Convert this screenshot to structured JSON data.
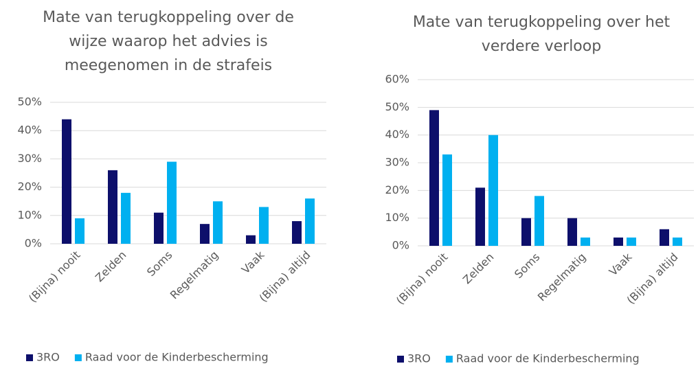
{
  "chart_data": [
    {
      "type": "bar",
      "title": "Mate van terugkoppeling over de wijze waarop het advies is meegenomen in de strafeis",
      "categories": [
        "(Bijna) nooit",
        "Zelden",
        "Soms",
        "Regelmatig",
        "Vaak",
        "(Bijna) altijd"
      ],
      "series": [
        {
          "name": "3RO",
          "color": "#0d0f6b",
          "values": [
            44,
            26,
            11,
            7,
            3,
            8
          ]
        },
        {
          "name": "Raad voor de Kinderbescherming",
          "color": "#00b0f0",
          "values": [
            9,
            18,
            29,
            15,
            13,
            16
          ]
        }
      ],
      "ylim": [
        0,
        50
      ],
      "yticks": [
        {
          "value": 0,
          "label": "0%"
        },
        {
          "value": 10,
          "label": "10%"
        },
        {
          "value": 20,
          "label": "20%"
        },
        {
          "value": 30,
          "label": "30%"
        },
        {
          "value": 40,
          "label": "40%"
        },
        {
          "value": 50,
          "label": "50%"
        }
      ],
      "grid": true,
      "legend": "bottom"
    },
    {
      "type": "bar",
      "title": "Mate van terugkoppeling over het verdere verloop",
      "categories": [
        "(Bijna) nooit",
        "Zelden",
        "Soms",
        "Regelmatig",
        "Vaak",
        "(Bijna) altijd"
      ],
      "series": [
        {
          "name": "3RO",
          "color": "#0d0f6b",
          "values": [
            49,
            21,
            10,
            10,
            3,
            6
          ]
        },
        {
          "name": "Raad voor de Kinderbescherming",
          "color": "#00b0f0",
          "values": [
            33,
            40,
            18,
            3,
            3,
            3
          ]
        }
      ],
      "ylim": [
        0,
        60
      ],
      "yticks": [
        {
          "value": 0,
          "label": "0%"
        },
        {
          "value": 10,
          "label": "10%"
        },
        {
          "value": 20,
          "label": "20%"
        },
        {
          "value": 30,
          "label": "30%"
        },
        {
          "value": 40,
          "label": "40%"
        },
        {
          "value": 50,
          "label": "50%"
        },
        {
          "value": 60,
          "label": "60%"
        }
      ],
      "grid": true,
      "legend": "bottom"
    }
  ]
}
